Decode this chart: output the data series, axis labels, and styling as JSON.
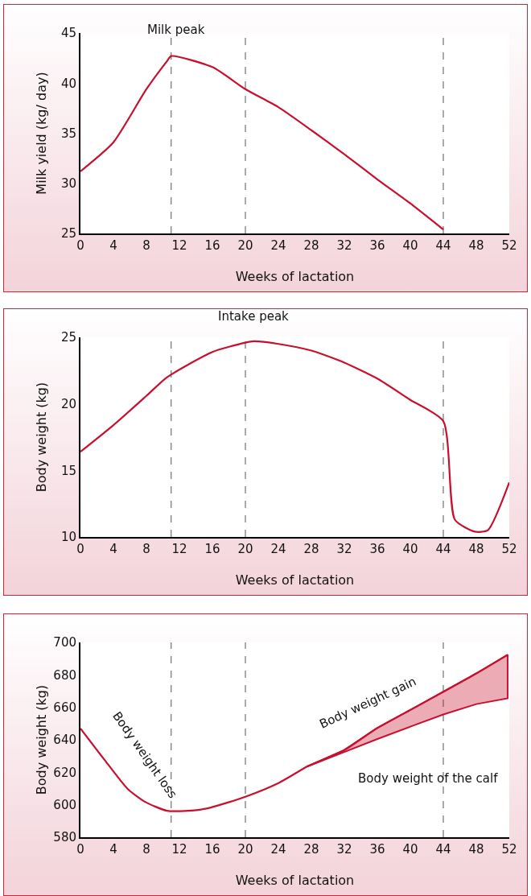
{
  "chart_data": [
    {
      "type": "line",
      "xlabel": "Weeks of lactation",
      "ylabel": "Milk yield (kg/ day)",
      "xlim": [
        0,
        52
      ],
      "xticks": [
        0,
        4,
        8,
        12,
        16,
        20,
        24,
        28,
        32,
        36,
        40,
        44,
        48,
        52
      ],
      "ylim": [
        25,
        45
      ],
      "yticks": [
        25,
        30,
        35,
        40,
        45
      ],
      "grid": false,
      "series": [
        {
          "color": "#c8102e",
          "x": [
            0,
            4,
            8,
            10.5,
            11,
            16,
            20,
            24,
            28,
            32,
            36,
            40,
            44
          ],
          "values": [
            31.2,
            34.1,
            39.4,
            42.2,
            42.7,
            41.6,
            39.4,
            37.6,
            35.3,
            32.9,
            30.4,
            28.0,
            25.4
          ]
        }
      ],
      "ref_lines": [
        {
          "axis": "x",
          "value": 11,
          "line_style": "dashed",
          "color": "#555555"
        },
        {
          "axis": "x",
          "value": 20,
          "line_style": "dashed",
          "color": "#555555"
        },
        {
          "axis": "x",
          "value": 44,
          "line_style": "dashed",
          "color": "#555555"
        }
      ],
      "annotations": [
        {
          "text": "Milk peak",
          "x": 11,
          "y": 42.7
        }
      ]
    },
    {
      "type": "line",
      "xlabel": "Weeks of lactation",
      "ylabel": "Body weight (kg)",
      "xlim": [
        0,
        52
      ],
      "xticks": [
        0,
        4,
        8,
        12,
        16,
        20,
        24,
        28,
        32,
        36,
        40,
        44,
        48,
        52
      ],
      "ylim": [
        10,
        25
      ],
      "yticks": [
        10,
        15,
        20,
        25
      ],
      "grid": false,
      "series": [
        {
          "color": "#c8102e",
          "x": [
            0,
            4,
            8,
            10.5,
            16,
            20,
            21,
            24,
            28,
            32,
            36,
            40,
            44,
            45.4,
            47.8,
            49.4,
            52
          ],
          "values": [
            16.4,
            18.4,
            20.6,
            22.0,
            23.9,
            24.6,
            24.7,
            24.5,
            24.0,
            23.1,
            21.9,
            20.3,
            18.7,
            11.3,
            10.4,
            10.5,
            14.1
          ]
        }
      ],
      "ref_lines": [
        {
          "axis": "x",
          "value": 11,
          "line_style": "dashed",
          "color": "#555555"
        },
        {
          "axis": "x",
          "value": 20,
          "line_style": "dashed",
          "color": "#555555"
        },
        {
          "axis": "x",
          "value": 44,
          "line_style": "dashed",
          "color": "#555555"
        }
      ],
      "annotations": [
        {
          "text": "Intake peak",
          "x": 21,
          "y": 24.7
        }
      ]
    },
    {
      "type": "line",
      "xlabel": "Weeks of lactation",
      "ylabel": "Body weight (kg)",
      "xlim": [
        0,
        52
      ],
      "xticks": [
        0,
        4,
        8,
        12,
        16,
        20,
        24,
        28,
        32,
        36,
        40,
        44,
        48,
        52
      ],
      "ylim": [
        580,
        700
      ],
      "yticks": [
        580,
        600,
        620,
        640,
        660,
        680,
        700
      ],
      "grid": false,
      "series": [
        {
          "color": "#c8102e",
          "x": [
            0,
            2.9,
            5.7,
            7.8,
            10.5,
            13.8,
            15.8,
            20,
            23.8,
            27.4
          ],
          "values": [
            647,
            627.8,
            609.9,
            601.9,
            596.3,
            596.5,
            598.3,
            604.9,
            612.8,
            623.4
          ]
        },
        {
          "color": "#c8102e",
          "x": [
            27.4,
            32,
            36,
            40,
            44,
            48,
            51.8
          ],
          "values": [
            623.4,
            633.7,
            647.3,
            658.4,
            669.6,
            680.9,
            692.4
          ],
          "lower": [
            623.4,
            632.5,
            640.5,
            648.1,
            655.6,
            662,
            665.6
          ],
          "upper": [
            623.4,
            633.7,
            647.3,
            658.4,
            669.6,
            680.9,
            692.4
          ]
        }
      ],
      "ref_lines": [
        {
          "axis": "x",
          "value": 11,
          "line_style": "dashed",
          "color": "#555555"
        },
        {
          "axis": "x",
          "value": 20,
          "line_style": "dashed",
          "color": "#555555"
        },
        {
          "axis": "x",
          "value": 44,
          "line_style": "dashed",
          "color": "#555555"
        }
      ],
      "annotations": [
        "Body weight loss",
        "Body weight gain",
        "Body weight of the calf"
      ]
    }
  ]
}
